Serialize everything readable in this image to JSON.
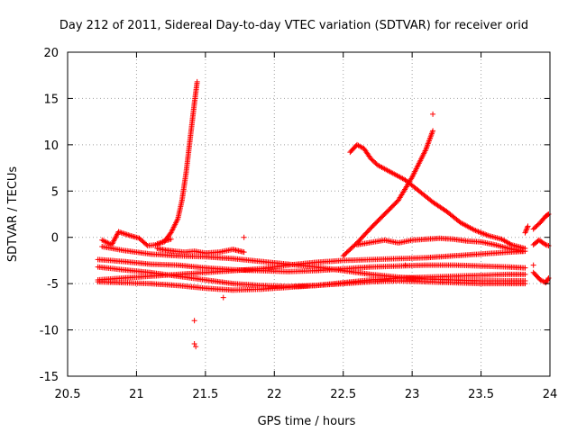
{
  "chart_data": {
    "type": "scatter",
    "title": "Day 212 of 2011, Sidereal Day-to-day VTEC variation (SDTVAR) for receiver orid",
    "xlabel": "GPS time / hours",
    "ylabel": "SDTVAR / TECUs",
    "xlim": [
      20.5,
      24
    ],
    "ylim": [
      -15,
      20
    ],
    "xticks": [
      "20.5",
      "21",
      "21.5",
      "22",
      "22.5",
      "23",
      "23.5",
      "24"
    ],
    "yticks": [
      "-15",
      "-10",
      "-5",
      "0",
      "5",
      "10",
      "15",
      "20"
    ],
    "grid": true,
    "marker": "+",
    "color": "#ff0000",
    "series": [
      {
        "tracks": [
          [
            [
              20.72,
              -2.4
            ],
            [
              20.9,
              -2.6
            ],
            [
              21.1,
              -2.9
            ],
            [
              21.3,
              -3.0
            ],
            [
              21.5,
              -3.3
            ],
            [
              21.7,
              -3.5
            ],
            [
              21.9,
              -3.6
            ],
            [
              22.1,
              -3.7
            ],
            [
              22.3,
              -3.6
            ],
            [
              22.5,
              -3.4
            ],
            [
              22.7,
              -3.2
            ],
            [
              22.9,
              -3.1
            ],
            [
              23.1,
              -3.0
            ],
            [
              23.3,
              -3.0
            ],
            [
              23.5,
              -3.1
            ],
            [
              23.7,
              -3.2
            ],
            [
              23.82,
              -3.3
            ]
          ],
          [
            [
              20.72,
              -4.6
            ],
            [
              20.9,
              -4.4
            ],
            [
              21.1,
              -4.2
            ],
            [
              21.3,
              -4.0
            ],
            [
              21.5,
              -3.8
            ],
            [
              21.7,
              -3.6
            ],
            [
              21.9,
              -3.4
            ],
            [
              22.1,
              -3.0
            ],
            [
              22.3,
              -2.7
            ],
            [
              22.5,
              -2.5
            ],
            [
              22.7,
              -2.4
            ],
            [
              22.9,
              -2.3
            ],
            [
              23.1,
              -2.2
            ],
            [
              23.3,
              -2.0
            ],
            [
              23.5,
              -1.8
            ],
            [
              23.7,
              -1.6
            ],
            [
              23.82,
              -1.5
            ]
          ],
          [
            [
              20.72,
              -3.2
            ],
            [
              20.9,
              -3.5
            ],
            [
              21.1,
              -3.8
            ],
            [
              21.3,
              -4.2
            ],
            [
              21.5,
              -4.6
            ],
            [
              21.7,
              -5.0
            ],
            [
              21.9,
              -5.2
            ],
            [
              22.1,
              -5.3
            ],
            [
              22.3,
              -5.2
            ],
            [
              22.5,
              -5.0
            ],
            [
              22.7,
              -4.8
            ],
            [
              22.9,
              -4.7
            ],
            [
              23.1,
              -4.8
            ],
            [
              23.3,
              -4.9
            ],
            [
              23.5,
              -5.0
            ],
            [
              23.7,
              -5.0
            ],
            [
              23.82,
              -5.0
            ]
          ],
          [
            [
              20.72,
              -4.8
            ],
            [
              20.9,
              -4.9
            ],
            [
              21.1,
              -5.0
            ],
            [
              21.3,
              -5.2
            ],
            [
              21.5,
              -5.5
            ],
            [
              21.7,
              -5.7
            ],
            [
              21.9,
              -5.6
            ],
            [
              22.1,
              -5.4
            ],
            [
              22.3,
              -5.2
            ],
            [
              22.5,
              -4.9
            ],
            [
              22.7,
              -4.6
            ],
            [
              22.9,
              -4.4
            ],
            [
              23.1,
              -4.3
            ],
            [
              23.3,
              -4.2
            ],
            [
              23.5,
              -4.1
            ],
            [
              23.7,
              -4.0
            ],
            [
              23.82,
              -4.0
            ]
          ],
          [
            [
              20.75,
              -1.0
            ],
            [
              20.9,
              -1.4
            ],
            [
              21.1,
              -1.8
            ],
            [
              21.3,
              -2.0
            ],
            [
              21.5,
              -2.1
            ],
            [
              21.7,
              -2.3
            ],
            [
              21.9,
              -2.6
            ],
            [
              22.1,
              -2.9
            ],
            [
              22.3,
              -3.2
            ],
            [
              22.5,
              -3.6
            ],
            [
              22.7,
              -4.0
            ],
            [
              22.9,
              -4.3
            ],
            [
              23.1,
              -4.5
            ],
            [
              23.3,
              -4.6
            ],
            [
              23.5,
              -4.7
            ],
            [
              23.7,
              -4.7
            ],
            [
              23.82,
              -4.7
            ]
          ],
          [
            [
              20.75,
              -0.3
            ],
            [
              20.82,
              -0.8
            ],
            [
              20.87,
              0.6
            ],
            [
              20.95,
              0.2
            ],
            [
              21.02,
              -0.1
            ],
            [
              21.08,
              -0.9
            ],
            [
              21.15,
              -0.8
            ],
            [
              21.2,
              -0.4
            ],
            [
              21.25,
              -0.2
            ]
          ],
          [
            [
              21.15,
              -1.2
            ],
            [
              21.22,
              -1.4
            ],
            [
              21.28,
              -1.5
            ],
            [
              21.35,
              -1.6
            ],
            [
              21.42,
              -1.5
            ],
            [
              21.5,
              -1.7
            ],
            [
              21.6,
              -1.6
            ],
            [
              21.7,
              -1.3
            ],
            [
              21.78,
              -1.6
            ]
          ],
          [
            [
              21.15,
              -0.7
            ],
            [
              21.2,
              -0.5
            ],
            [
              21.25,
              0.5
            ],
            [
              21.3,
              2.0
            ],
            [
              21.33,
              4.0
            ],
            [
              21.36,
              7.0
            ],
            [
              21.38,
              9.5
            ],
            [
              21.4,
              12.0
            ],
            [
              21.42,
              14.5
            ],
            [
              21.44,
              16.8
            ]
          ],
          [
            [
              22.55,
              9.2
            ],
            [
              22.6,
              10.0
            ],
            [
              22.65,
              9.6
            ],
            [
              22.7,
              8.5
            ],
            [
              22.75,
              7.8
            ],
            [
              22.85,
              7.0
            ],
            [
              22.95,
              6.2
            ],
            [
              23.05,
              5.0
            ],
            [
              23.15,
              3.8
            ],
            [
              23.25,
              2.8
            ],
            [
              23.35,
              1.6
            ],
            [
              23.45,
              0.8
            ],
            [
              23.55,
              0.2
            ],
            [
              23.65,
              -0.2
            ],
            [
              23.72,
              -0.8
            ],
            [
              23.82,
              -1.2
            ]
          ],
          [
            [
              22.5,
              -2.0
            ],
            [
              22.6,
              -0.6
            ],
            [
              22.7,
              1.0
            ],
            [
              22.8,
              2.5
            ],
            [
              22.9,
              4.0
            ],
            [
              23.0,
              6.5
            ],
            [
              23.1,
              9.5
            ],
            [
              23.15,
              11.5
            ]
          ],
          [
            [
              22.6,
              -0.8
            ],
            [
              22.8,
              -0.3
            ],
            [
              22.9,
              -0.6
            ],
            [
              23.0,
              -0.3
            ],
            [
              23.1,
              -0.2
            ],
            [
              23.2,
              -0.1
            ],
            [
              23.3,
              -0.2
            ],
            [
              23.4,
              -0.4
            ],
            [
              23.5,
              -0.5
            ],
            [
              23.6,
              -0.8
            ],
            [
              23.7,
              -1.2
            ],
            [
              23.8,
              -1.5
            ]
          ],
          [
            [
              23.88,
              -3.8
            ],
            [
              23.93,
              -4.6
            ],
            [
              23.97,
              -4.9
            ],
            [
              23.99,
              -4.4
            ]
          ],
          [
            [
              23.88,
              -0.8
            ],
            [
              23.92,
              -0.3
            ],
            [
              23.97,
              -0.8
            ],
            [
              23.99,
              -0.9
            ]
          ],
          [
            [
              23.88,
              0.9
            ],
            [
              23.93,
              1.6
            ],
            [
              23.97,
              2.3
            ],
            [
              23.99,
              2.5
            ]
          ],
          [
            [
              23.82,
              0.5
            ],
            [
              23.84,
              1.2
            ]
          ]
        ],
        "outliers": [
          [
            21.42,
            -9.0
          ],
          [
            21.42,
            -11.5
          ],
          [
            21.43,
            -11.8
          ],
          [
            21.78,
            0.0
          ],
          [
            21.63,
            -6.5
          ],
          [
            23.15,
            13.3
          ],
          [
            23.88,
            -3.0
          ],
          [
            22.95,
            -3.0
          ]
        ]
      }
    ]
  }
}
